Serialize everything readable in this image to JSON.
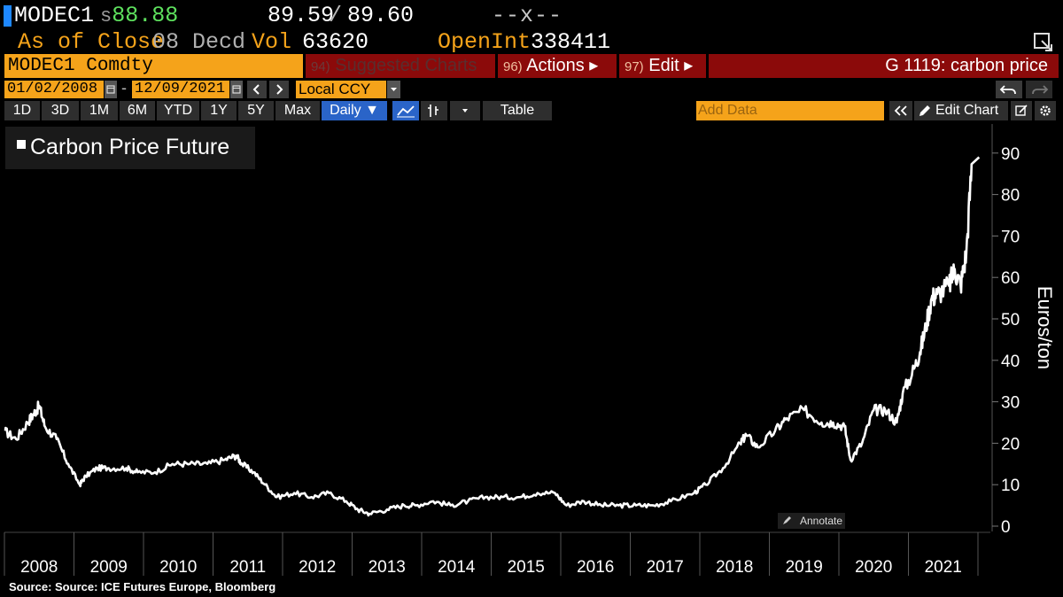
{
  "header": {
    "ticker": "MODEC1",
    "last_prefix": "s",
    "last_price": "88.88",
    "bid": "89.59",
    "bid_ask_sep": "/",
    "ask": "89.60",
    "change": "--x--",
    "asof_label": "As of Close",
    "asof_date": "08 Decd",
    "vol_label": "Vol",
    "vol_value": "63620",
    "oi_label": "OpenInt",
    "oi_value": "338411"
  },
  "toolbar": {
    "security": "MODEC1 Comdty",
    "suggested_num": "94)",
    "suggested_label": "Suggested Charts",
    "actions_num": "96)",
    "actions_label": "Actions ▸",
    "edit_num": "97)",
    "edit_label": "Edit ▸",
    "function_title": "G 1119: carbon price",
    "start_date": "01/02/2008",
    "end_date": "12/09/2021",
    "date_sep": "-",
    "currency": "Local CCY",
    "periods": [
      "1D",
      "3D",
      "1M",
      "6M",
      "YTD",
      "1Y",
      "5Y",
      "Max"
    ],
    "frequency": "Daily ▼",
    "table_label": "Table",
    "add_data_placeholder": "Add Data",
    "edit_chart_label": "Edit Chart"
  },
  "chart_data": {
    "type": "line",
    "legend": "Carbon Price Future",
    "legend_position": "top-left",
    "ylabel": "Euros/ton",
    "ylim": [
      0,
      95
    ],
    "yticks": [
      0,
      10,
      20,
      30,
      40,
      50,
      60,
      70,
      80,
      90
    ],
    "x_tick_labels": [
      "2008",
      "2009",
      "2010",
      "2011",
      "2012",
      "2013",
      "2014",
      "2015",
      "2016",
      "2017",
      "2018",
      "2019",
      "2020",
      "2021"
    ],
    "annotate_label": "Annotate",
    "series": [
      {
        "values_by_date": [
          [
            "2008-01",
            23
          ],
          [
            "2008-03",
            21
          ],
          [
            "2008-05",
            25
          ],
          [
            "2008-06",
            27
          ],
          [
            "2008-07",
            29
          ],
          [
            "2008-08",
            24
          ],
          [
            "2008-10",
            21
          ],
          [
            "2008-12",
            15
          ],
          [
            "2009-02",
            10
          ],
          [
            "2009-03",
            12
          ],
          [
            "2009-05",
            14
          ],
          [
            "2009-07",
            14
          ],
          [
            "2009-10",
            14
          ],
          [
            "2009-12",
            13
          ],
          [
            "2010-03",
            13
          ],
          [
            "2010-06",
            15
          ],
          [
            "2010-09",
            15
          ],
          [
            "2010-12",
            15
          ],
          [
            "2011-03",
            16
          ],
          [
            "2011-05",
            17
          ],
          [
            "2011-06",
            15
          ],
          [
            "2011-08",
            13
          ],
          [
            "2011-10",
            10
          ],
          [
            "2011-12",
            7
          ],
          [
            "2012-03",
            8
          ],
          [
            "2012-06",
            7
          ],
          [
            "2012-09",
            8
          ],
          [
            "2012-12",
            6
          ],
          [
            "2013-02",
            4
          ],
          [
            "2013-04",
            3
          ],
          [
            "2013-07",
            4
          ],
          [
            "2013-10",
            5
          ],
          [
            "2013-12",
            5
          ],
          [
            "2014-03",
            6
          ],
          [
            "2014-06",
            5
          ],
          [
            "2014-09",
            6
          ],
          [
            "2014-12",
            7
          ],
          [
            "2015-03",
            7
          ],
          [
            "2015-06",
            7
          ],
          [
            "2015-09",
            8
          ],
          [
            "2015-12",
            8
          ],
          [
            "2016-02",
            5
          ],
          [
            "2016-05",
            6
          ],
          [
            "2016-08",
            5
          ],
          [
            "2016-11",
            5
          ],
          [
            "2017-02",
            5
          ],
          [
            "2017-05",
            5
          ],
          [
            "2017-08",
            6
          ],
          [
            "2017-12",
            8
          ],
          [
            "2018-02",
            10
          ],
          [
            "2018-05",
            14
          ],
          [
            "2018-08",
            20
          ],
          [
            "2018-09",
            22
          ],
          [
            "2018-11",
            19
          ],
          [
            "2019-02",
            23
          ],
          [
            "2019-04",
            26
          ],
          [
            "2019-07",
            28
          ],
          [
            "2019-10",
            25
          ],
          [
            "2019-12",
            25
          ],
          [
            "2020-02",
            24
          ],
          [
            "2020-03",
            16
          ],
          [
            "2020-05",
            20
          ],
          [
            "2020-07",
            28
          ],
          [
            "2020-09",
            28
          ],
          [
            "2020-11",
            25
          ],
          [
            "2020-12",
            32
          ],
          [
            "2021-02",
            38
          ],
          [
            "2021-03",
            42
          ],
          [
            "2021-04",
            48
          ],
          [
            "2021-05",
            55
          ],
          [
            "2021-06",
            56
          ],
          [
            "2021-08",
            58
          ],
          [
            "2021-09",
            62
          ],
          [
            "2021-10",
            58
          ],
          [
            "2021-11",
            66
          ],
          [
            "2021-12",
            89
          ]
        ]
      }
    ]
  },
  "footer": {
    "source": "Source: Source: ICE Futures Europe, Bloomberg"
  },
  "colors": {
    "amber": "#f5a31a",
    "bloomberg_red": "#8b0a0a",
    "price_green": "#5ee05e",
    "selected_blue": "#2a64c8",
    "line": "#ffffff"
  }
}
